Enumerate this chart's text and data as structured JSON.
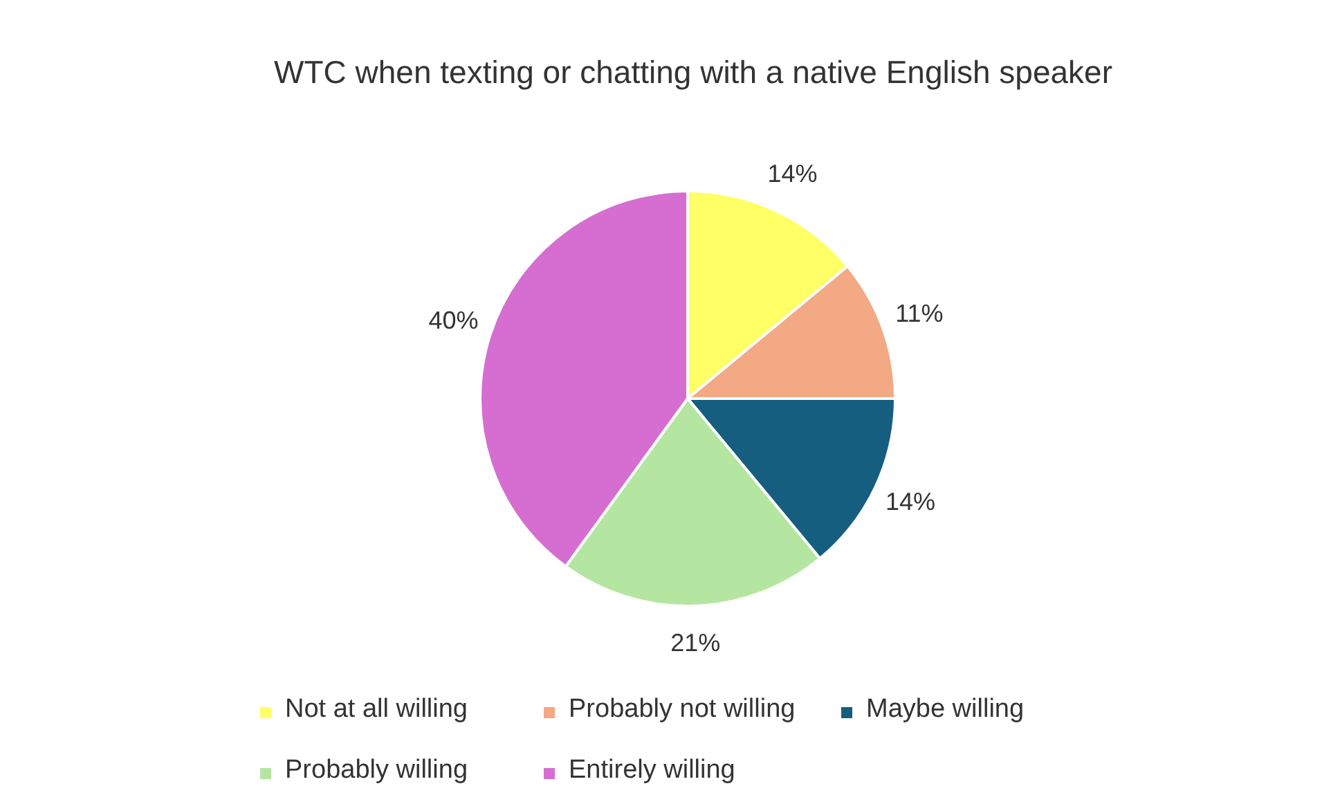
{
  "chart_data": {
    "type": "pie",
    "title": "WTC when texting or chatting with a native English speaker",
    "categories": [
      "Not at all willing",
      "Probably not willing",
      "Maybe willing",
      "Probably willing",
      "Entirely willing"
    ],
    "values": [
      14,
      11,
      14,
      21,
      40
    ],
    "colors": [
      "#ffff66",
      "#f2a984",
      "#155e80",
      "#b5e6a1",
      "#d56ed0"
    ],
    "value_labels": [
      "14%",
      "11%",
      "14%",
      "21%",
      "40%"
    ],
    "legend": "bottom"
  }
}
